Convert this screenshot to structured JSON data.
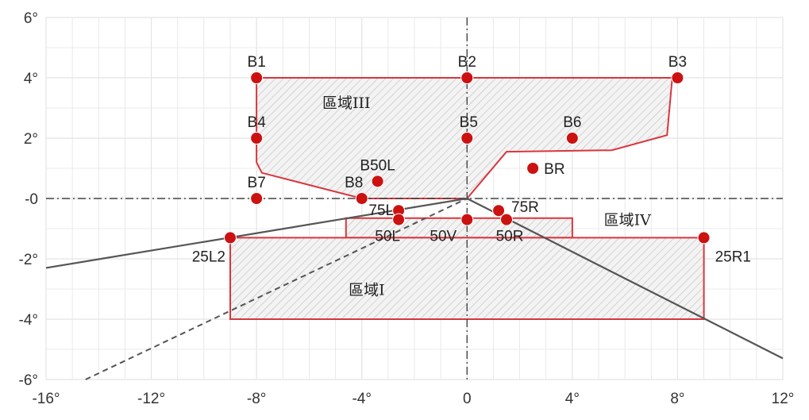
{
  "chart_data": {
    "type": "scatter",
    "x_unit": "°",
    "y_unit": "°",
    "xlim": [
      -16,
      12
    ],
    "ylim": [
      -6,
      6
    ],
    "grid": true,
    "grid_minor_step": 1,
    "x_ticks": [
      {
        "value": -16,
        "label": "-16°"
      },
      {
        "value": -12,
        "label": "-12°"
      },
      {
        "value": -8,
        "label": "-8°"
      },
      {
        "value": -4,
        "label": "-4°"
      },
      {
        "value": 0,
        "label": "0"
      },
      {
        "value": 4,
        "label": "4°"
      },
      {
        "value": 8,
        "label": "8°"
      },
      {
        "value": 12,
        "label": "12°"
      }
    ],
    "y_ticks": [
      {
        "value": 6,
        "label": "6°"
      },
      {
        "value": 4,
        "label": "4°"
      },
      {
        "value": 2,
        "label": "2°"
      },
      {
        "value": 0,
        "label": "-0"
      },
      {
        "value": -2,
        "label": "-2°"
      },
      {
        "value": -4,
        "label": "-4°"
      },
      {
        "value": -6,
        "label": "-6°"
      }
    ],
    "points": [
      {
        "name": "B1",
        "x": -8,
        "y": 4
      },
      {
        "name": "B2",
        "x": 0,
        "y": 4
      },
      {
        "name": "B3",
        "x": 8,
        "y": 4
      },
      {
        "name": "B4",
        "x": -8,
        "y": 2
      },
      {
        "name": "B5",
        "x": 0,
        "y": 2
      },
      {
        "name": "B6",
        "x": 4,
        "y": 2
      },
      {
        "name": "B7",
        "x": -8,
        "y": 0
      },
      {
        "name": "B8",
        "x": -4,
        "y": 0
      },
      {
        "name": "B50L",
        "x": -3.4,
        "y": 0.57
      },
      {
        "name": "BR",
        "x": 2.5,
        "y": 1
      },
      {
        "name": "75L",
        "x": -2.6,
        "y": -0.4
      },
      {
        "name": "50L",
        "x": -2.6,
        "y": -0.7
      },
      {
        "name": "50V",
        "x": 0,
        "y": -0.7
      },
      {
        "name": "75R",
        "x": 1.2,
        "y": -0.4
      },
      {
        "name": "50R",
        "x": 1.5,
        "y": -0.7
      },
      {
        "name": "25L2",
        "x": -9,
        "y": -1.3
      },
      {
        "name": "25R1",
        "x": 9,
        "y": -1.3
      }
    ],
    "zones": [
      {
        "name": "區域III"
      },
      {
        "name": "區域IV"
      },
      {
        "name": "區域I"
      }
    ],
    "colors": {
      "point": "#cc1111",
      "zone_outline": "#d9363e",
      "zone_hatch": "#bbbbbb",
      "cutoff_line": "#555555",
      "grid": "#e4e4e4",
      "axis": "#444444"
    }
  }
}
